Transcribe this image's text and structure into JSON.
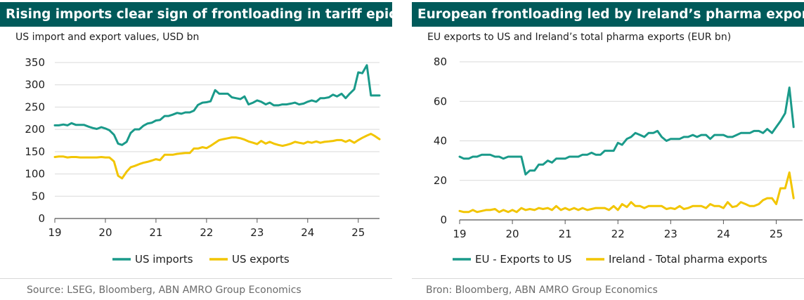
{
  "panels": [
    {
      "title": "Rising imports clear sign of frontloading in tariff epicentre US",
      "subtitle": "US import and export values, USD bn",
      "source": "Source:  LSEG, Bloomberg, ABN AMRO Group Economics"
    },
    {
      "title": "European frontloading led by Ireland’s pharma exports",
      "subtitle": "EU exports to US and Ireland’s total pharma exports (EUR bn)",
      "source": "Bron: Bloomberg, ABN AMRO Group Economics"
    }
  ],
  "colors": {
    "teal": "#1a9a8a",
    "yellow": "#f2c500",
    "title_bg": "#005a5a"
  },
  "chart_data": [
    {
      "type": "line",
      "title": "Rising imports clear sign of frontloading in tariff epicentre US",
      "ylabel": "US import and export values, USD bn",
      "xlim": [
        2019,
        2025.42
      ],
      "ylim": [
        0,
        350
      ],
      "yticks": [
        0,
        50,
        100,
        150,
        200,
        250,
        300,
        350
      ],
      "xticks": [
        2019,
        2020,
        2021,
        2022,
        2023,
        2024,
        2025
      ],
      "xtick_labels": [
        "19",
        "20",
        "21",
        "22",
        "23",
        "24",
        "25"
      ],
      "grid": "horizontal",
      "legend": "bottom",
      "series": [
        {
          "name": "US imports",
          "color": "#1a9a8a",
          "x": [
            2019.0,
            2019.08,
            2019.17,
            2019.25,
            2019.33,
            2019.42,
            2019.5,
            2019.58,
            2019.67,
            2019.75,
            2019.83,
            2019.92,
            2020.0,
            2020.08,
            2020.17,
            2020.25,
            2020.33,
            2020.42,
            2020.5,
            2020.58,
            2020.67,
            2020.75,
            2020.83,
            2020.92,
            2021.0,
            2021.08,
            2021.17,
            2021.25,
            2021.33,
            2021.42,
            2021.5,
            2021.58,
            2021.67,
            2021.75,
            2021.83,
            2021.92,
            2022.0,
            2022.08,
            2022.17,
            2022.25,
            2022.33,
            2022.42,
            2022.5,
            2022.58,
            2022.67,
            2022.75,
            2022.83,
            2022.92,
            2023.0,
            2023.08,
            2023.17,
            2023.25,
            2023.33,
            2023.42,
            2023.5,
            2023.58,
            2023.67,
            2023.75,
            2023.83,
            2023.92,
            2024.0,
            2024.08,
            2024.17,
            2024.25,
            2024.33,
            2024.42,
            2024.5,
            2024.58,
            2024.67,
            2024.75,
            2024.83,
            2024.92,
            2025.0,
            2025.08,
            2025.17,
            2025.25,
            2025.33,
            2025.42
          ],
          "values": [
            209,
            209,
            211,
            209,
            214,
            210,
            210,
            210,
            206,
            203,
            201,
            205,
            202,
            198,
            188,
            168,
            165,
            172,
            192,
            200,
            200,
            208,
            213,
            215,
            220,
            221,
            230,
            230,
            233,
            237,
            235,
            238,
            238,
            242,
            255,
            260,
            261,
            263,
            288,
            280,
            280,
            280,
            272,
            270,
            268,
            274,
            256,
            260,
            265,
            262,
            256,
            260,
            254,
            254,
            256,
            256,
            258,
            260,
            256,
            258,
            262,
            265,
            262,
            270,
            270,
            272,
            278,
            274,
            280,
            270,
            280,
            290,
            328,
            326,
            344,
            276,
            276,
            276
          ]
        },
        {
          "name": "US exports",
          "color": "#f2c500",
          "x": [
            2019.0,
            2019.08,
            2019.17,
            2019.25,
            2019.33,
            2019.42,
            2019.5,
            2019.58,
            2019.67,
            2019.75,
            2019.83,
            2019.92,
            2020.0,
            2020.08,
            2020.17,
            2020.25,
            2020.33,
            2020.42,
            2020.5,
            2020.58,
            2020.67,
            2020.75,
            2020.83,
            2020.92,
            2021.0,
            2021.08,
            2021.17,
            2021.25,
            2021.33,
            2021.42,
            2021.5,
            2021.58,
            2021.67,
            2021.75,
            2021.83,
            2021.92,
            2022.0,
            2022.08,
            2022.17,
            2022.25,
            2022.33,
            2022.42,
            2022.5,
            2022.58,
            2022.67,
            2022.75,
            2022.83,
            2022.92,
            2023.0,
            2023.08,
            2023.17,
            2023.25,
            2023.33,
            2023.42,
            2023.5,
            2023.58,
            2023.67,
            2023.75,
            2023.83,
            2023.92,
            2024.0,
            2024.08,
            2024.17,
            2024.25,
            2024.33,
            2024.42,
            2024.5,
            2024.58,
            2024.67,
            2024.75,
            2024.83,
            2024.92,
            2025.0,
            2025.08,
            2025.17,
            2025.25,
            2025.33,
            2025.42
          ],
          "values": [
            138,
            139,
            139,
            137,
            138,
            138,
            137,
            137,
            137,
            137,
            137,
            138,
            137,
            137,
            128,
            96,
            90,
            105,
            115,
            118,
            122,
            125,
            127,
            130,
            133,
            131,
            143,
            143,
            143,
            145,
            146,
            147,
            147,
            157,
            157,
            160,
            158,
            163,
            170,
            176,
            178,
            180,
            182,
            182,
            180,
            177,
            173,
            170,
            167,
            174,
            168,
            172,
            168,
            165,
            163,
            165,
            168,
            172,
            170,
            168,
            172,
            170,
            173,
            170,
            172,
            173,
            174,
            176,
            176,
            172,
            176,
            170,
            176,
            181,
            186,
            190,
            185,
            178
          ]
        }
      ]
    },
    {
      "type": "line",
      "title": "European frontloading led by Ireland’s pharma exports",
      "ylabel": "EU exports to US and Ireland’s total pharma exports (EUR bn)",
      "xlim": [
        2019,
        2025.5
      ],
      "ylim": [
        0,
        80
      ],
      "yticks": [
        0,
        20,
        40,
        60,
        80
      ],
      "xticks": [
        2019,
        2020,
        2021,
        2022,
        2023,
        2024,
        2025
      ],
      "xtick_labels": [
        "19",
        "20",
        "21",
        "22",
        "23",
        "24",
        "25"
      ],
      "grid": "horizontal",
      "legend": "bottom",
      "series": [
        {
          "name": "EU - Exports to US",
          "color": "#1a9a8a",
          "x": [
            2019.0,
            2019.08,
            2019.17,
            2019.25,
            2019.33,
            2019.42,
            2019.5,
            2019.58,
            2019.67,
            2019.75,
            2019.83,
            2019.92,
            2020.0,
            2020.08,
            2020.17,
            2020.25,
            2020.33,
            2020.42,
            2020.5,
            2020.58,
            2020.67,
            2020.75,
            2020.83,
            2020.92,
            2021.0,
            2021.08,
            2021.17,
            2021.25,
            2021.33,
            2021.42,
            2021.5,
            2021.58,
            2021.67,
            2021.75,
            2021.83,
            2021.92,
            2022.0,
            2022.08,
            2022.17,
            2022.25,
            2022.33,
            2022.42,
            2022.5,
            2022.58,
            2022.67,
            2022.75,
            2022.83,
            2022.92,
            2023.0,
            2023.08,
            2023.17,
            2023.25,
            2023.33,
            2023.42,
            2023.5,
            2023.58,
            2023.67,
            2023.75,
            2023.83,
            2023.92,
            2024.0,
            2024.08,
            2024.17,
            2024.25,
            2024.33,
            2024.42,
            2024.5,
            2024.58,
            2024.67,
            2024.75,
            2024.83,
            2024.92,
            2025.0,
            2025.08,
            2025.17,
            2025.25,
            2025.33
          ],
          "values": [
            32,
            31,
            31,
            32,
            32,
            33,
            33,
            33,
            32,
            32,
            31,
            32,
            32,
            32,
            32,
            23,
            25,
            25,
            28,
            28,
            30,
            29,
            31,
            31,
            31,
            32,
            32,
            32,
            33,
            33,
            34,
            33,
            33,
            35,
            35,
            35,
            39,
            38,
            41,
            42,
            44,
            43,
            42,
            44,
            44,
            45,
            42,
            40,
            41,
            41,
            41,
            42,
            42,
            43,
            42,
            43,
            43,
            41,
            43,
            43,
            43,
            42,
            42,
            43,
            44,
            44,
            44,
            45,
            45,
            44,
            46,
            44,
            47,
            50,
            54,
            67,
            47
          ]
        },
        {
          "name": "Ireland - Total pharma exports",
          "color": "#f2c500",
          "x": [
            2019.0,
            2019.08,
            2019.17,
            2019.25,
            2019.33,
            2019.42,
            2019.5,
            2019.58,
            2019.67,
            2019.75,
            2019.83,
            2019.92,
            2020.0,
            2020.08,
            2020.17,
            2020.25,
            2020.33,
            2020.42,
            2020.5,
            2020.58,
            2020.67,
            2020.75,
            2020.83,
            2020.92,
            2021.0,
            2021.08,
            2021.17,
            2021.25,
            2021.33,
            2021.42,
            2021.5,
            2021.58,
            2021.67,
            2021.75,
            2021.83,
            2021.92,
            2022.0,
            2022.08,
            2022.17,
            2022.25,
            2022.33,
            2022.42,
            2022.5,
            2022.58,
            2022.67,
            2022.75,
            2022.83,
            2022.92,
            2023.0,
            2023.08,
            2023.17,
            2023.25,
            2023.33,
            2023.42,
            2023.5,
            2023.58,
            2023.67,
            2023.75,
            2023.83,
            2023.92,
            2024.0,
            2024.08,
            2024.17,
            2024.25,
            2024.33,
            2024.42,
            2024.5,
            2024.58,
            2024.67,
            2024.75,
            2024.83,
            2024.92,
            2025.0,
            2025.08,
            2025.17,
            2025.25,
            2025.33
          ],
          "values": [
            4.5,
            4,
            4,
            5,
            4,
            4.5,
            5,
            5,
            5.5,
            4,
            5,
            4,
            5,
            4,
            6,
            5,
            5.5,
            5,
            6,
            5.5,
            6,
            5,
            7,
            5,
            6,
            5,
            6,
            5,
            6,
            5,
            5.5,
            6,
            6,
            6,
            5,
            7,
            5,
            8,
            6.5,
            9,
            7,
            7,
            6,
            7,
            7,
            7,
            7,
            5.5,
            6,
            5.5,
            7,
            5.5,
            6,
            7,
            7,
            7,
            6,
            8,
            7,
            7,
            6,
            9,
            6.5,
            7,
            9,
            8,
            7,
            7,
            8,
            10,
            11,
            11,
            8,
            16,
            16,
            24,
            11
          ]
        }
      ]
    }
  ]
}
